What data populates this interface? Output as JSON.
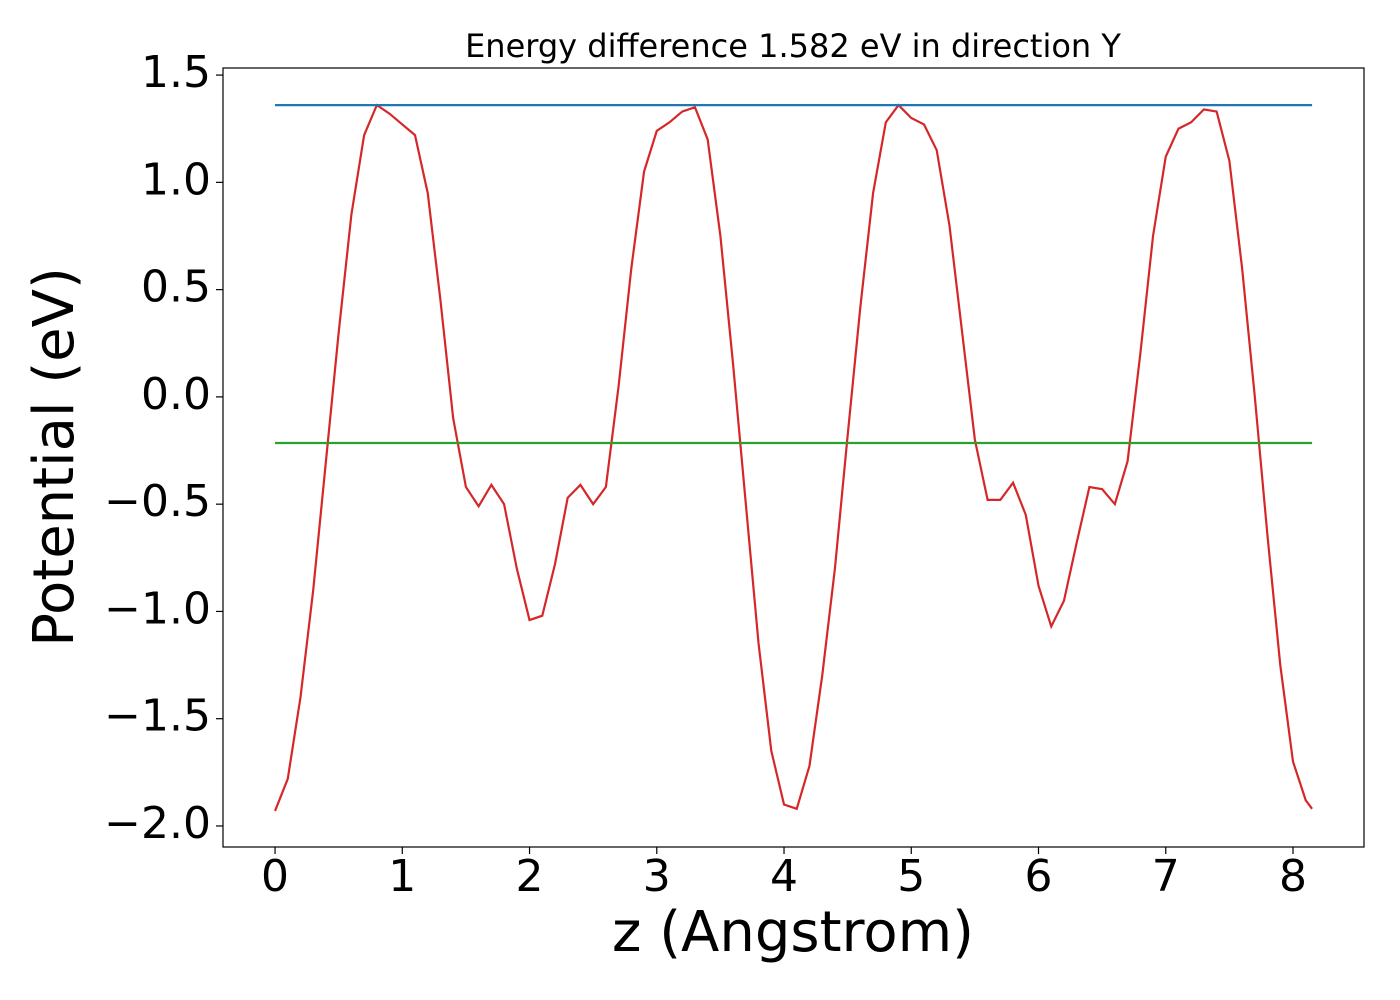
{
  "chart_data": {
    "type": "line",
    "title": "Energy difference 1.582 eV in direction Y",
    "xlabel": "z (Angstrom)",
    "ylabel": "Potential (eV)",
    "xlim": [
      -0.409,
      8.558
    ],
    "ylim": [
      -2.098,
      1.533
    ],
    "xticks": [
      0,
      1,
      2,
      3,
      4,
      5,
      6,
      7,
      8
    ],
    "yticks": [
      {
        "value": -2,
        "label": "−2.0"
      },
      {
        "value": -1.5,
        "label": "−1.5"
      },
      {
        "value": -1,
        "label": "−1.0"
      },
      {
        "value": -0.5,
        "label": "−0.5"
      },
      {
        "value": 0,
        "label": "0.0"
      },
      0.5,
      {
        "value": 1,
        "label": "1.0"
      },
      1.5
    ],
    "grid": false,
    "series": [
      {
        "color": "#d62728",
        "x": [
          0,
          0.1,
          0.2,
          0.3,
          0.4,
          0.5,
          0.6,
          0.7,
          0.8,
          0.9,
          1.0,
          1.1,
          1.2,
          1.3,
          1.4,
          1.5,
          1.6,
          1.7,
          1.8,
          1.9,
          2.0,
          2.1,
          2.2,
          2.3,
          2.4,
          2.5,
          2.6,
          2.7,
          2.8,
          2.9,
          3.0,
          3.1,
          3.2,
          3.3,
          3.4,
          3.5,
          3.6,
          3.7,
          3.8,
          3.9,
          4.0,
          4.1,
          4.2,
          4.3,
          4.4,
          4.5,
          4.6,
          4.7,
          4.8,
          4.9,
          5.0,
          5.1,
          5.2,
          5.3,
          5.4,
          5.5,
          5.6,
          5.7,
          5.8,
          5.9,
          6.0,
          6.1,
          6.2,
          6.3,
          6.4,
          6.5,
          6.6,
          6.7,
          6.8,
          6.9,
          7.0,
          7.1,
          7.2,
          7.3,
          7.4,
          7.5,
          7.6,
          7.7,
          7.8,
          7.9,
          8.0,
          8.1,
          8.15
        ],
        "values": [
          -1.93,
          -1.78,
          -1.4,
          -0.9,
          -0.3,
          0.3,
          0.85,
          1.22,
          1.36,
          1.32,
          1.27,
          1.22,
          0.95,
          0.45,
          -0.1,
          -0.42,
          -0.51,
          -0.41,
          -0.5,
          -0.8,
          -1.04,
          -1.02,
          -0.78,
          -0.47,
          -0.41,
          -0.5,
          -0.42,
          0.05,
          0.6,
          1.05,
          1.24,
          1.28,
          1.33,
          1.35,
          1.2,
          0.75,
          0.15,
          -0.5,
          -1.15,
          -1.65,
          -1.9,
          -1.92,
          -1.72,
          -1.3,
          -0.8,
          -0.18,
          0.42,
          0.95,
          1.28,
          1.36,
          1.3,
          1.27,
          1.15,
          0.8,
          0.3,
          -0.2,
          -0.48,
          -0.48,
          -0.4,
          -0.55,
          -0.88,
          -1.07,
          -0.95,
          -0.68,
          -0.42,
          -0.43,
          -0.5,
          -0.3,
          0.2,
          0.75,
          1.12,
          1.25,
          1.28,
          1.34,
          1.33,
          1.1,
          0.6,
          0.0,
          -0.65,
          -1.25,
          -1.7,
          -1.88,
          -1.92
        ]
      },
      {
        "color": "#1f77b4",
        "x": [
          0,
          8.15
        ],
        "values": [
          1.36,
          1.36
        ]
      },
      {
        "color": "#2ca02c",
        "x": [
          0,
          8.15
        ],
        "values": [
          -0.215,
          -0.215
        ]
      }
    ]
  }
}
